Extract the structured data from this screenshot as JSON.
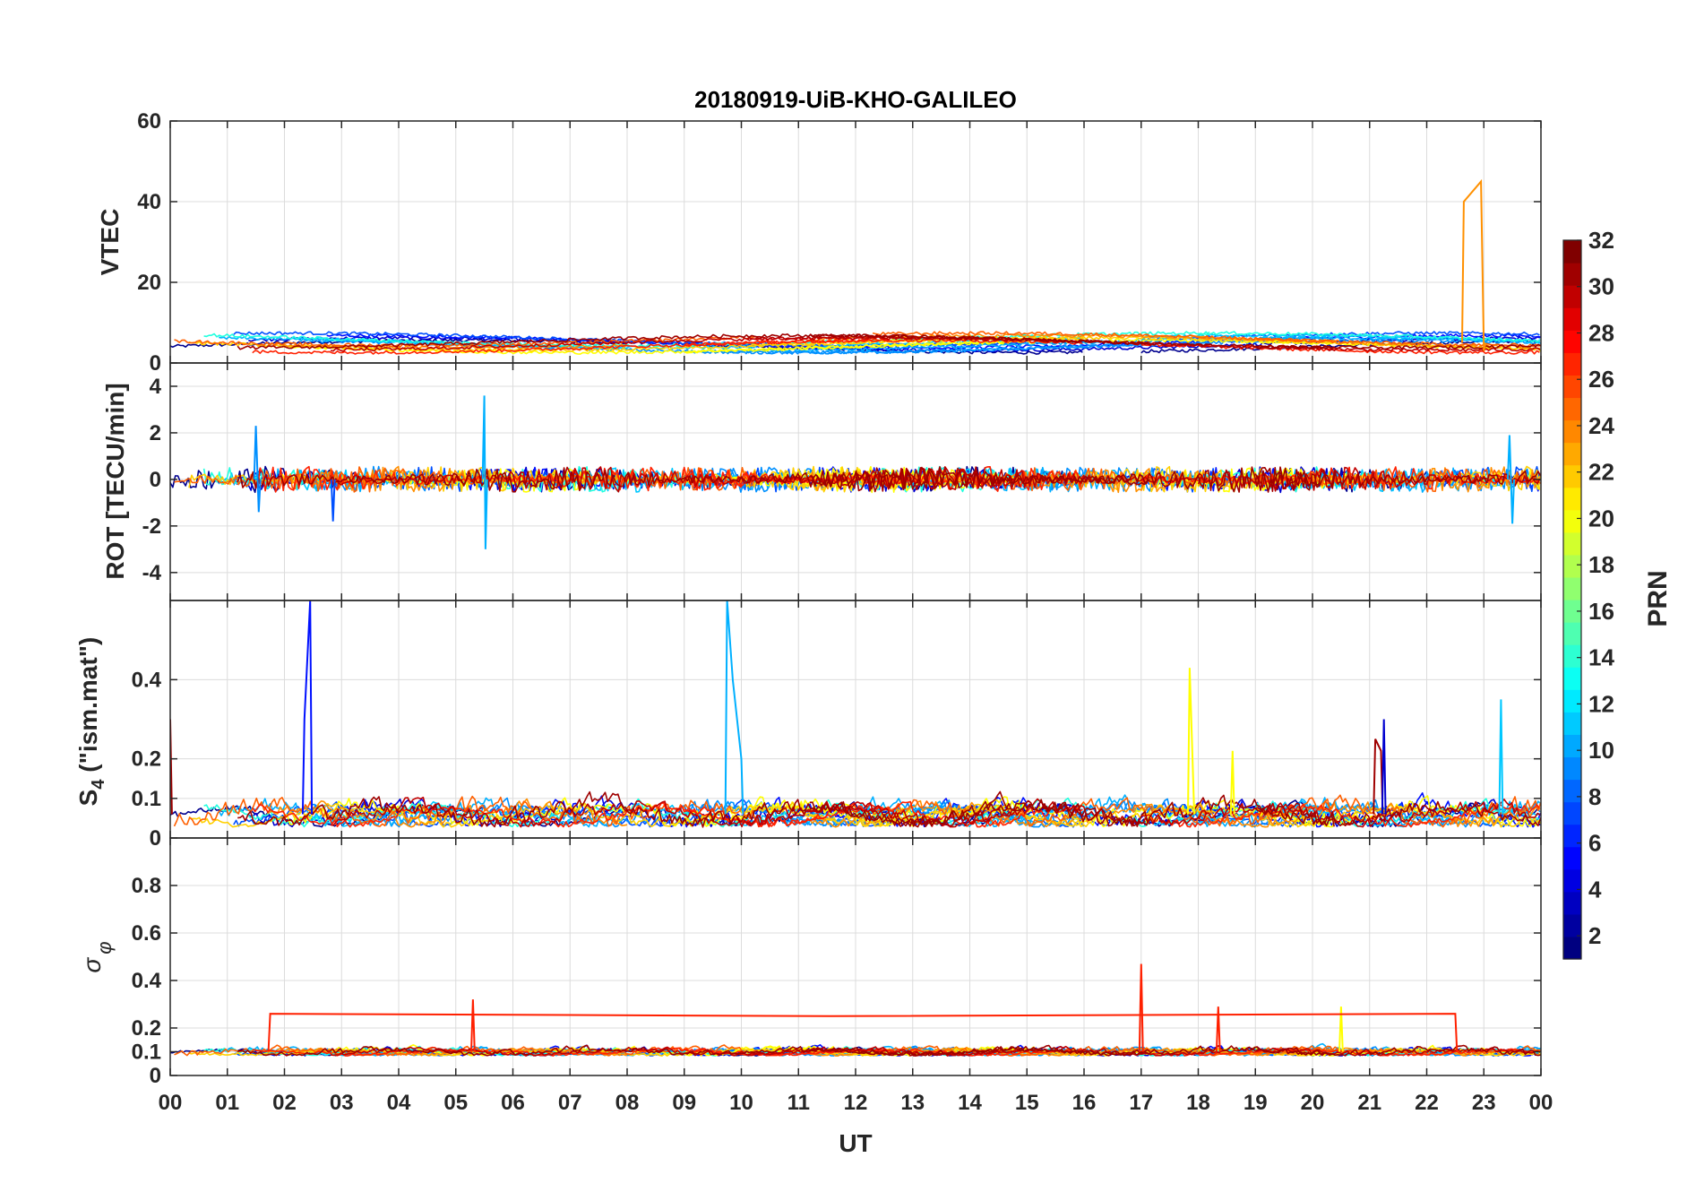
{
  "chart_data": {
    "type": "line",
    "title": "20180919-UiB-KHO-GALILEO",
    "xlabel": "UT",
    "x_ticks": [
      "00",
      "01",
      "02",
      "03",
      "04",
      "05",
      "06",
      "07",
      "08",
      "09",
      "10",
      "11",
      "12",
      "13",
      "14",
      "15",
      "16",
      "17",
      "18",
      "19",
      "20",
      "21",
      "22",
      "23",
      "00"
    ],
    "xlim": [
      0,
      24
    ],
    "panels": [
      {
        "id": "vtec",
        "ylabel": "VTEC",
        "ylim": [
          0,
          60
        ],
        "y_ticks": [
          0,
          20,
          40,
          60
        ],
        "y_tick_labels": [
          "0",
          "20",
          "40",
          "60"
        ],
        "baseline": 5,
        "amplitude": 1.5,
        "noise": 0.4,
        "spikes": [
          {
            "series": "PRN 23",
            "points": [
              [
                22.65,
                40
              ],
              [
                22.95,
                45
              ],
              [
                23.0,
                3
              ]
            ]
          }
        ]
      },
      {
        "id": "rot",
        "ylabel": "ROT [TECU/min]",
        "ylim": [
          -5.2,
          5.0
        ],
        "y_ticks": [
          -4,
          -2,
          0,
          2,
          4
        ],
        "y_tick_labels": [
          "-4",
          "-2",
          "0",
          "2",
          "4"
        ],
        "baseline": 0,
        "amplitude": 0,
        "noise": 0.35,
        "spikes": [
          {
            "series": "PRN 9",
            "points": [
              [
                5.5,
                3.6
              ],
              [
                5.52,
                -3.0
              ]
            ]
          },
          {
            "series": "PRN 8",
            "points": [
              [
                1.5,
                2.3
              ],
              [
                1.55,
                -1.4
              ]
            ]
          },
          {
            "series": "PRN 6",
            "points": [
              [
                2.85,
                -1.8
              ]
            ]
          },
          {
            "series": "PRN 9",
            "points": [
              [
                23.45,
                1.9
              ],
              [
                23.5,
                -1.9
              ]
            ]
          }
        ]
      },
      {
        "id": "s4",
        "ylabel": "S4 (\"ism.mat\")",
        "ylabel_main": "S",
        "ylabel_sub": "4",
        "ylabel_rest": " (\"ism.mat\")",
        "ylim": [
          0,
          0.6
        ],
        "y_ticks": [
          0,
          0.1,
          0.2,
          0.4
        ],
        "y_tick_labels": [
          "0",
          "0.1",
          "0.2",
          "0.4"
        ],
        "baseline": 0.06,
        "amplitude": 0.02,
        "noise": 0.025,
        "spikes": [
          {
            "series": "PRN 4",
            "points": [
              [
                2.35,
                0.3
              ],
              [
                2.45,
                0.6
              ]
            ]
          },
          {
            "series": "PRN 9",
            "points": [
              [
                9.75,
                0.6
              ],
              [
                9.85,
                0.4
              ],
              [
                10.0,
                0.2
              ]
            ]
          },
          {
            "series": "PRN 20",
            "points": [
              [
                17.85,
                0.43
              ],
              [
                17.9,
                0.2
              ]
            ]
          },
          {
            "series": "PRN 20",
            "points": [
              [
                18.6,
                0.22
              ]
            ]
          },
          {
            "series": "PRN 31",
            "points": [
              [
                21.1,
                0.25
              ],
              [
                21.2,
                0.22
              ]
            ]
          },
          {
            "series": "PRN 3",
            "points": [
              [
                21.25,
                0.3
              ]
            ]
          },
          {
            "series": "PRN 10",
            "points": [
              [
                23.3,
                0.35
              ]
            ]
          },
          {
            "series": "PRN 31",
            "points": [
              [
                0.0,
                0.3
              ]
            ]
          }
        ]
      },
      {
        "id": "sigma_phi",
        "ylabel": "σ φ",
        "ylabel_main": "σ",
        "ylabel_sub": "φ",
        "ylim": [
          0,
          1.0
        ],
        "y_ticks": [
          0,
          0.1,
          0.2,
          0.4,
          0.6,
          0.8
        ],
        "y_tick_labels": [
          "0",
          "0.1",
          "0.2",
          "0.4",
          "0.6",
          "0.8"
        ],
        "baseline": 0.1,
        "amplitude": 0.01,
        "noise": 0.015,
        "spikes": [
          {
            "series": "PRN 27",
            "points": [
              [
                17.0,
                0.47
              ]
            ]
          },
          {
            "series": "PRN 27",
            "points": [
              [
                5.3,
                0.32
              ]
            ]
          },
          {
            "series": "PRN 27",
            "points": [
              [
                18.35,
                0.29
              ]
            ]
          },
          {
            "series": "PRN 20",
            "points": [
              [
                20.5,
                0.29
              ]
            ]
          },
          {
            "series": "PRN 27",
            "points": [
              [
                1.75,
                0.26
              ],
              [
                11.55,
                0.25
              ],
              [
                22.5,
                0.26
              ]
            ]
          }
        ]
      }
    ],
    "series": [
      {
        "name": "PRN 1",
        "color": "#00008f"
      },
      {
        "name": "PRN 3",
        "color": "#0000d0"
      },
      {
        "name": "PRN 4",
        "color": "#0010ff"
      },
      {
        "name": "PRN 6",
        "color": "#0050ff"
      },
      {
        "name": "PRN 8",
        "color": "#0090ff"
      },
      {
        "name": "PRN 9",
        "color": "#00b0ff"
      },
      {
        "name": "PRN 10",
        "color": "#00c8ff"
      },
      {
        "name": "PRN 12",
        "color": "#20ffdf"
      },
      {
        "name": "PRN 20",
        "color": "#ffff00"
      },
      {
        "name": "PRN 21",
        "color": "#ffd000"
      },
      {
        "name": "PRN 23",
        "color": "#ff9000"
      },
      {
        "name": "PRN 25",
        "color": "#ff6000"
      },
      {
        "name": "PRN 27",
        "color": "#ff2000"
      },
      {
        "name": "PRN 30",
        "color": "#c00000"
      },
      {
        "name": "PRN 31",
        "color": "#9f0000"
      }
    ],
    "colorbar": {
      "label": "PRN",
      "range": [
        1,
        32
      ],
      "ticks": [
        2,
        4,
        6,
        8,
        10,
        12,
        14,
        16,
        18,
        20,
        22,
        24,
        26,
        28,
        30,
        32
      ],
      "tick_labels": [
        "2",
        "4",
        "6",
        "8",
        "10",
        "12",
        "14",
        "16",
        "18",
        "20",
        "22",
        "24",
        "26",
        "28",
        "30",
        "32"
      ],
      "colormap": "jet"
    }
  }
}
